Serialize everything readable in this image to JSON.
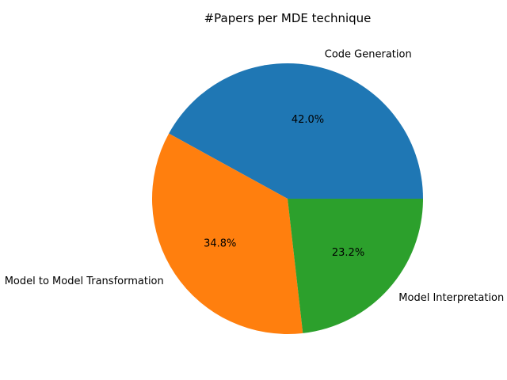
{
  "chart_data": {
    "type": "pie",
    "title": "#Papers per MDE technique",
    "start_angle_deg": 0,
    "direction": "counterclockwise",
    "slices": [
      {
        "label": "Code Generation",
        "value": 42.0,
        "pct_label": "42.0%",
        "color": "#1f77b4"
      },
      {
        "label": "Model to Model Transformation",
        "value": 34.8,
        "pct_label": "34.8%",
        "color": "#ff7f0e"
      },
      {
        "label": "Model Interpretation",
        "value": 23.2,
        "pct_label": "23.2%",
        "color": "#2ca02c"
      }
    ]
  }
}
